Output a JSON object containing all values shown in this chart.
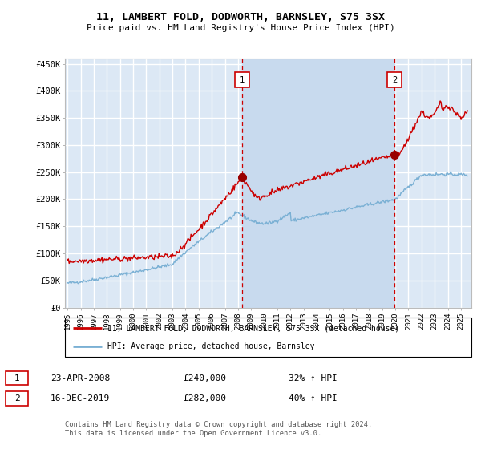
{
  "title": "11, LAMBERT FOLD, DODWORTH, BARNSLEY, S75 3SX",
  "subtitle": "Price paid vs. HM Land Registry's House Price Index (HPI)",
  "ylabel_ticks": [
    "£0",
    "£50K",
    "£100K",
    "£150K",
    "£200K",
    "£250K",
    "£300K",
    "£350K",
    "£400K",
    "£450K"
  ],
  "ytick_values": [
    0,
    50000,
    100000,
    150000,
    200000,
    250000,
    300000,
    350000,
    400000,
    450000
  ],
  "ylim": [
    0,
    460000
  ],
  "xlim_start": 1994.8,
  "xlim_end": 2025.8,
  "background_color": "#ffffff",
  "plot_bg_color": "#dce8f5",
  "grid_color": "#ffffff",
  "sale1": {
    "date": 2008.31,
    "price": 240000,
    "label": "1"
  },
  "sale2": {
    "date": 2019.96,
    "price": 282000,
    "label": "2"
  },
  "legend_line1": "11, LAMBERT FOLD, DODWORTH, BARNSLEY, S75 3SX (detached house)",
  "legend_line2": "HPI: Average price, detached house, Barnsley",
  "table_row1": [
    "1",
    "23-APR-2008",
    "£240,000",
    "32% ↑ HPI"
  ],
  "table_row2": [
    "2",
    "16-DEC-2019",
    "£282,000",
    "40% ↑ HPI"
  ],
  "footer": "Contains HM Land Registry data © Crown copyright and database right 2024.\nThis data is licensed under the Open Government Licence v3.0.",
  "red_color": "#cc0000",
  "blue_color": "#7ab0d4",
  "dashed_color": "#cc0000",
  "shade_color": "#c8daee"
}
